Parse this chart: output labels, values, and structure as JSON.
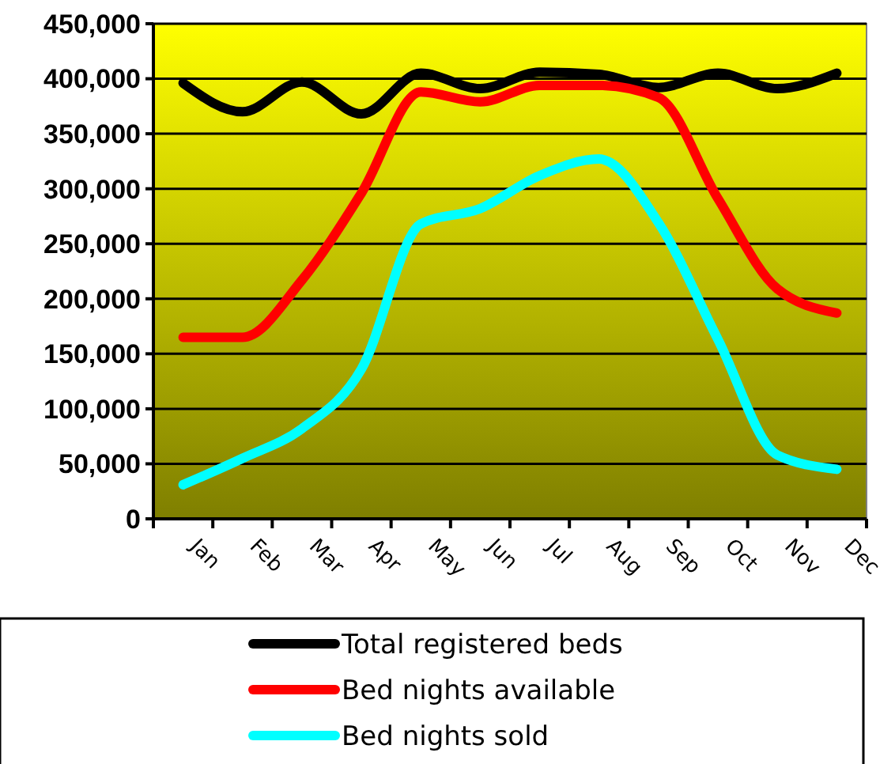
{
  "chart_data": {
    "type": "line",
    "categories": [
      "Jan",
      "Feb",
      "Mar",
      "Apr",
      "May",
      "Jun",
      "Jul",
      "Aug",
      "Sep",
      "Oct",
      "Nov",
      "Dec"
    ],
    "series": [
      {
        "name": "Total registered beds",
        "color": "#000000",
        "values": [
          396000,
          370000,
          397000,
          368000,
          405000,
          391000,
          406000,
          404000,
          392000,
          405000,
          391000,
          405000
        ]
      },
      {
        "name": "Bed nights available",
        "color": "#ff0000",
        "values": [
          165000,
          165000,
          217000,
          296000,
          388000,
          379000,
          394000,
          394000,
          383000,
          291000,
          209000,
          187000
        ]
      },
      {
        "name": "Bed nights sold",
        "color": "#00ffff",
        "values": [
          31000,
          55000,
          82000,
          136000,
          268000,
          282000,
          312000,
          327000,
          269000,
          163000,
          58000,
          45000
        ]
      }
    ],
    "ylim": [
      0,
      450000
    ],
    "yticks": [
      {
        "value": 0,
        "label": "0"
      },
      {
        "value": 50000,
        "label": "50,000"
      },
      {
        "value": 100000,
        "label": "100,000"
      },
      {
        "value": 150000,
        "label": "150,000"
      },
      {
        "value": 200000,
        "label": "200,000"
      },
      {
        "value": 250000,
        "label": "250,000"
      },
      {
        "value": 300000,
        "label": "300,000"
      },
      {
        "value": 350000,
        "label": "350,000"
      },
      {
        "value": 400000,
        "label": "400,000"
      },
      {
        "value": 450000,
        "label": "450,000"
      }
    ],
    "grid": "y",
    "legend": "bottom",
    "marker": "none",
    "line_style": "solid"
  }
}
